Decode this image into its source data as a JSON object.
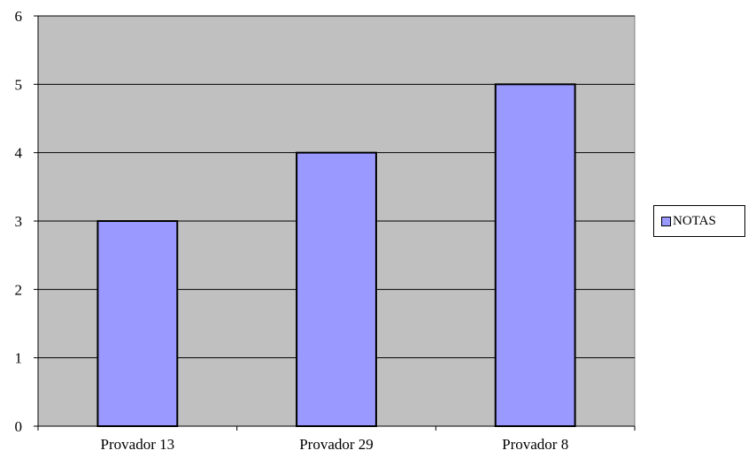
{
  "chart_data": {
    "type": "bar",
    "categories": [
      "Provador 13",
      "Provador 29",
      "Provador 8"
    ],
    "series": [
      {
        "name": "NOTAS",
        "values": [
          3,
          4,
          5
        ]
      }
    ],
    "ylim": [
      0,
      6
    ],
    "yticks": [
      0,
      1,
      2,
      3,
      4,
      5,
      6
    ],
    "grid": true,
    "legend_position": "right",
    "colors": {
      "bar_fill": "#9999ff",
      "plot_background": "#c0c0c0",
      "gridline": "#000000",
      "axis": "#808080"
    }
  }
}
